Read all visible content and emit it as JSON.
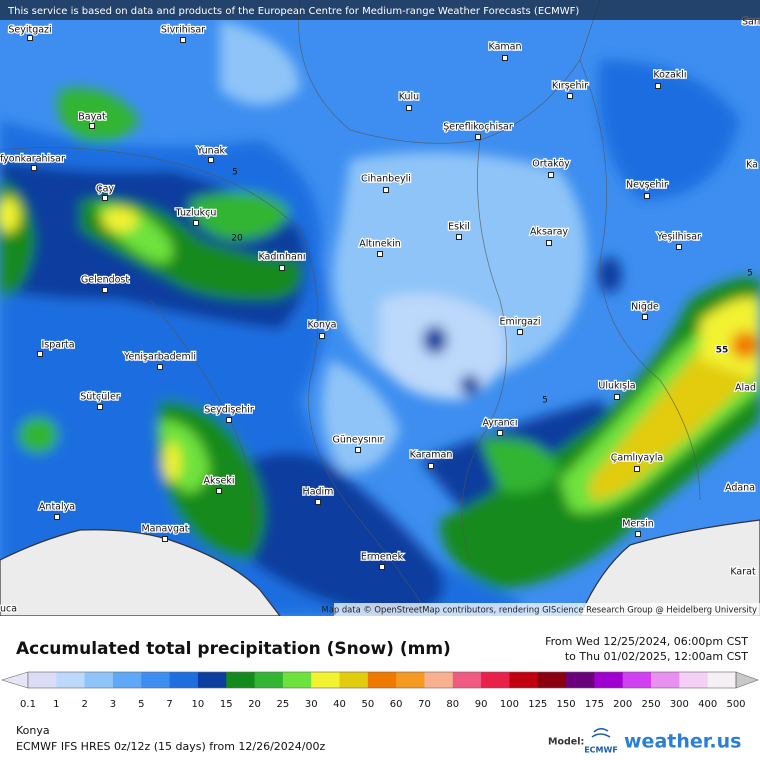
{
  "header": {
    "notice": "This service is based on data and products of the European Centre for Medium-range Weather Forecasts (ECMWF)"
  },
  "map": {
    "cities": [
      "Seyitgazi",
      "Sivrihisar",
      "Kaman",
      "Sarıka",
      "Kırşehir",
      "Kozaklı",
      "Kulu",
      "Bayat",
      "Şereflikoçhisar",
      "fyonkarahisar",
      "Yunak",
      "Ortaköy",
      "Ka",
      "Cihanbeyli",
      "Nevşehir",
      "Çay",
      "Tuzlukçu",
      "Eskil",
      "Aksaray",
      "Yeşilhisar",
      "Altınekin",
      "Kadınhanı",
      "Gelendost",
      "Niğde",
      "Emirgazi",
      "Konya",
      "Isparta",
      "Yenişarbademli",
      "Ulukışla",
      "Alad",
      "Sütçüler",
      "Seydişehir",
      "Ayrancı",
      "Güneysınır",
      "Karaman",
      "Çamlıyayla",
      "Akseki",
      "Adana",
      "Hadim",
      "Antalya",
      "Mersin",
      "Manavgat",
      "Ermenek",
      "Karat",
      "uca"
    ],
    "contour_labels": [
      "5",
      "20",
      "5",
      "5",
      "55"
    ],
    "attribution": "Map data © OpenStreetMap contributors, rendering GIScience Research Group @ Heidelberg University"
  },
  "title": "Accumulated total precipitation (Snow) (mm)",
  "period": {
    "from": "From Wed 12/25/2024, 06:00pm CST",
    "to": "to Thu 01/02/2025, 12:00am CST"
  },
  "legend": {
    "ticks": [
      0.1,
      1,
      2,
      3,
      5,
      7,
      10,
      15,
      20,
      25,
      30,
      40,
      50,
      60,
      70,
      80,
      90,
      100,
      125,
      150,
      175,
      200,
      250,
      300,
      400,
      500
    ],
    "colors": [
      "#e6e6f8",
      "#dcdcf5",
      "#bcd8fa",
      "#8ec4f8",
      "#5fa8f5",
      "#3d8ef0",
      "#1f6ee0",
      "#0b3e9e",
      "#138a1c",
      "#32b532",
      "#6ee23c",
      "#f2f230",
      "#e2cc10",
      "#f07a00",
      "#f59a20",
      "#f8b090",
      "#f05a82",
      "#e8204a",
      "#c00010",
      "#8a0010",
      "#6a007a",
      "#a000d0",
      "#d040f0",
      "#e890f0",
      "#f4d0f4",
      "#f4f0f4",
      "#c8c8c8"
    ]
  },
  "footer": {
    "location": "Konya",
    "model_run": "ECMWF IFS HRES 0z/12z (15 days) from 12/26/2024/00z",
    "model_label": "Model:",
    "ecmwf": "ECMWF",
    "brand": "weather.us"
  }
}
